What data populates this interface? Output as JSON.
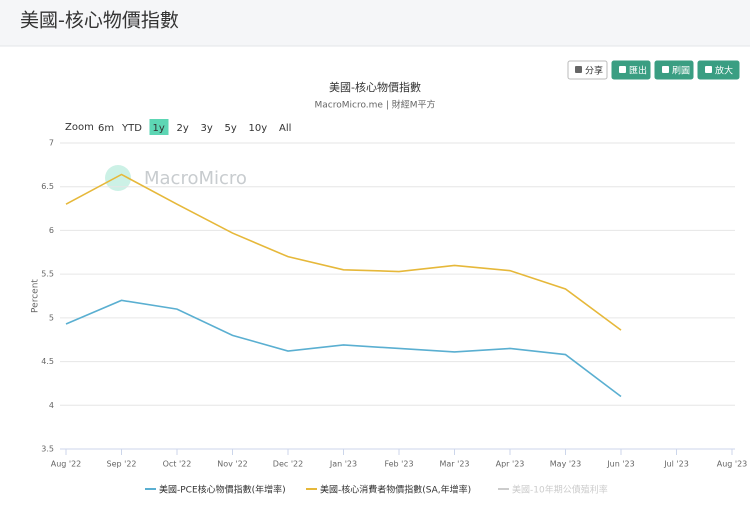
{
  "header": {
    "title": "美國-核心物價指數"
  },
  "toolbar": {
    "buttons": [
      "分享",
      "匯出",
      "刷圖",
      "放大"
    ]
  },
  "chart_data": {
    "type": "line",
    "title": "美國-核心物價指數",
    "subtitle": "MacroMicro.me | 財經M平方",
    "watermark": "MacroMicro",
    "range_selector": {
      "label": "Zoom",
      "options": [
        "6m",
        "YTD",
        "1y",
        "2y",
        "3y",
        "5y",
        "10y",
        "All"
      ],
      "selected": "1y"
    },
    "y_label": "Percent",
    "categories": [
      "Aug '22",
      "Sep '22",
      "Oct '22",
      "Nov '22",
      "Dec '22",
      "Jan '23",
      "Feb '23",
      "Mar '23",
      "Apr '23",
      "May '23",
      "Jun '23",
      "Jul '23",
      "Aug '23"
    ],
    "ylim": [
      3.5,
      7
    ],
    "yticks": [
      3.5,
      4,
      4.5,
      5,
      5.5,
      6,
      6.5,
      7
    ],
    "grid": true,
    "series": [
      {
        "name": "美國-PCE核心物價指數(年增率)",
        "color": "#5aafd1",
        "visible": true,
        "values": [
          4.93,
          5.2,
          5.1,
          4.8,
          4.62,
          4.69,
          4.65,
          4.61,
          4.65,
          4.58,
          4.1,
          null,
          null
        ]
      },
      {
        "name": "美國-核心消費者物價指數(SA,年增率)",
        "color": "#e6b83a",
        "visible": true,
        "values": [
          6.3,
          6.64,
          6.3,
          5.97,
          5.7,
          5.55,
          5.53,
          5.6,
          5.54,
          5.33,
          4.86,
          null,
          null
        ]
      },
      {
        "name": "美國-10年期公債殖利率",
        "color": "#cccccc",
        "visible": false,
        "values": [
          null,
          null,
          null,
          null,
          null,
          null,
          null,
          null,
          null,
          null,
          null,
          null,
          null
        ]
      }
    ]
  }
}
